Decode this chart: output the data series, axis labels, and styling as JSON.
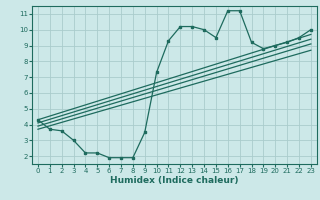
{
  "title": "",
  "xlabel": "Humidex (Indice chaleur)",
  "bg_color": "#cce8e8",
  "grid_color": "#aacccc",
  "line_color": "#1e6b5e",
  "xlim": [
    -0.5,
    23.5
  ],
  "ylim": [
    1.5,
    11.5
  ],
  "xticks": [
    0,
    1,
    2,
    3,
    4,
    5,
    6,
    7,
    8,
    9,
    10,
    11,
    12,
    13,
    14,
    15,
    16,
    17,
    18,
    19,
    20,
    21,
    22,
    23
  ],
  "yticks": [
    2,
    3,
    4,
    5,
    6,
    7,
    8,
    9,
    10,
    11
  ],
  "curve1_x": [
    0,
    1,
    2,
    3,
    4,
    5,
    6,
    7,
    8,
    9,
    10,
    11,
    12,
    13,
    14,
    15,
    16,
    17,
    18,
    19,
    20,
    21,
    22,
    23
  ],
  "curve1_y": [
    4.3,
    3.7,
    3.6,
    3.0,
    2.2,
    2.2,
    1.9,
    1.9,
    1.9,
    3.5,
    7.3,
    9.3,
    10.2,
    10.2,
    10.0,
    9.5,
    11.2,
    11.2,
    9.2,
    8.8,
    9.0,
    9.2,
    9.5,
    10.0
  ],
  "line1_x": [
    0,
    23
  ],
  "line1_y": [
    4.3,
    9.7
  ],
  "line2_x": [
    0,
    23
  ],
  "line2_y": [
    4.1,
    9.4
  ],
  "line3_x": [
    0,
    23
  ],
  "line3_y": [
    3.9,
    9.1
  ],
  "line4_x": [
    0,
    23
  ],
  "line4_y": [
    3.7,
    8.7
  ],
  "xlabel_fontsize": 6.5,
  "tick_fontsize": 5.0,
  "lw": 0.9,
  "ms": 2.0
}
